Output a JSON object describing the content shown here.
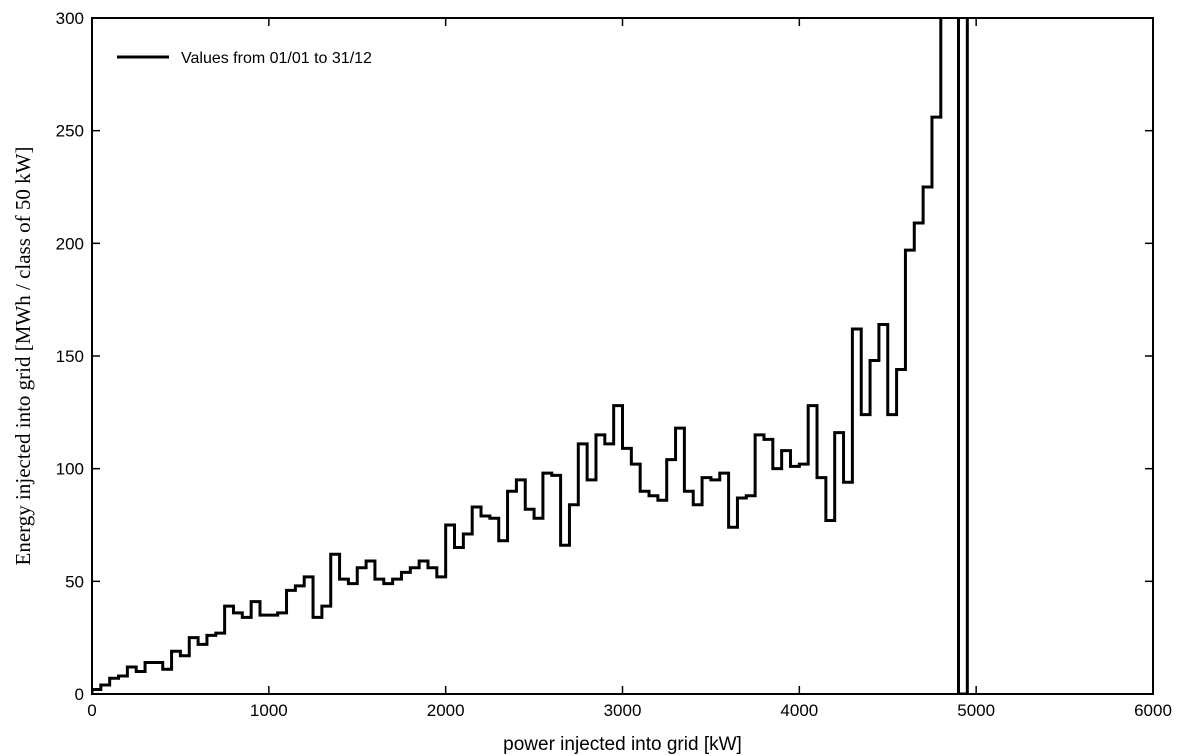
{
  "chart_data": {
    "type": "line",
    "step": true,
    "xlabel": "power injected into grid [kW]",
    "ylabel": "Energy injected into grid [MWh / class of 50 kW]",
    "xlim": [
      0,
      6000
    ],
    "ylim": [
      0,
      300
    ],
    "x_ticks": [
      0,
      1000,
      2000,
      3000,
      4000,
      5000,
      6000
    ],
    "y_ticks": [
      0,
      50,
      100,
      150,
      200,
      250,
      300
    ],
    "x_tick_labels": [
      "0",
      "1000",
      "2000",
      "3000",
      "4000",
      "5000",
      "6000"
    ],
    "y_tick_labels": [
      "0",
      "50",
      "100",
      "150",
      "200",
      "250",
      "300"
    ],
    "grid": false,
    "legend_position": "top-left",
    "bin_width_kw": 50,
    "series": [
      {
        "name": "Values from 01/01 to 31/12",
        "color": "#000000",
        "bin_start_kw": [
          0,
          50,
          100,
          150,
          200,
          250,
          300,
          350,
          400,
          450,
          500,
          550,
          600,
          650,
          700,
          750,
          800,
          850,
          900,
          950,
          1000,
          1050,
          1100,
          1150,
          1200,
          1250,
          1300,
          1350,
          1400,
          1450,
          1500,
          1550,
          1600,
          1650,
          1700,
          1750,
          1800,
          1850,
          1900,
          1950,
          2000,
          2050,
          2100,
          2150,
          2200,
          2250,
          2300,
          2350,
          2400,
          2450,
          2500,
          2550,
          2600,
          2650,
          2700,
          2750,
          2800,
          2850,
          2900,
          2950,
          3000,
          3050,
          3100,
          3150,
          3200,
          3250,
          3300,
          3350,
          3400,
          3450,
          3500,
          3550,
          3600,
          3650,
          3700,
          3750,
          3800,
          3850,
          3900,
          3950,
          4000,
          4050,
          4100,
          4150,
          4200,
          4250,
          4300,
          4350,
          4400,
          4450,
          4500,
          4550,
          4600,
          4650,
          4700,
          4750,
          4800,
          4850,
          4900
        ],
        "values": [
          2,
          4,
          7,
          8,
          12,
          10,
          14,
          14,
          11,
          19,
          17,
          25,
          22,
          26,
          27,
          39,
          36,
          34,
          41,
          35,
          35,
          36,
          46,
          48,
          52,
          34,
          39,
          62,
          51,
          49,
          56,
          59,
          51,
          49,
          51,
          54,
          56,
          59,
          56,
          52,
          75,
          65,
          71,
          83,
          79,
          78,
          68,
          90,
          95,
          82,
          78,
          98,
          97,
          66,
          84,
          111,
          95,
          115,
          111,
          128,
          109,
          102,
          90,
          88,
          86,
          104,
          118,
          90,
          84,
          96,
          95,
          98,
          74,
          87,
          88,
          115,
          113,
          100,
          108,
          101,
          102,
          128,
          96,
          77,
          116,
          94,
          162,
          124,
          148,
          164,
          124,
          144,
          197,
          209,
          225,
          256,
          320,
          320,
          0
        ]
      }
    ],
    "vertical_lines": [
      {
        "x": 4950
      }
    ]
  }
}
